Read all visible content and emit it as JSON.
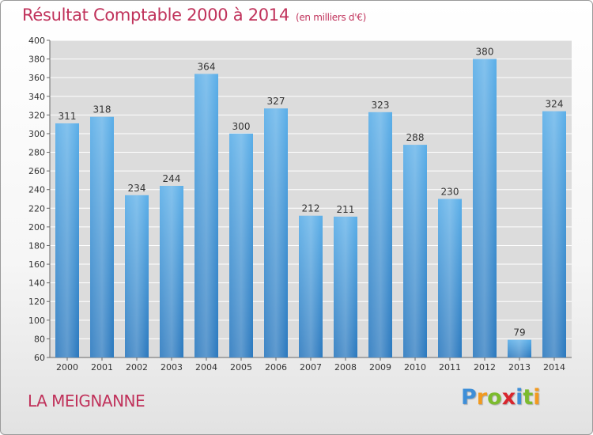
{
  "header": {
    "title": "Résultat Comptable 2000 à 2014",
    "subtitle": "(en milliers d'€)"
  },
  "commune": "LA MEIGNANNE",
  "logo": {
    "text": "Proxiti",
    "letters": [
      "P",
      "r",
      "o",
      "x",
      "i",
      "t",
      "i"
    ],
    "colors": [
      "#3d8ed8",
      "#f29a1f",
      "#7cbb2e",
      "#d8262e",
      "#3d8ed8",
      "#7cbb2e",
      "#f29a1f"
    ]
  },
  "chart_data": {
    "type": "bar",
    "title": "Résultat Comptable 2000 à 2014",
    "xlabel": "",
    "ylabel": "",
    "categories": [
      "2000",
      "2001",
      "2002",
      "2003",
      "2004",
      "2005",
      "2006",
      "2007",
      "2008",
      "2009",
      "2010",
      "2011",
      "2012",
      "2013",
      "2014"
    ],
    "values": [
      311,
      318,
      234,
      244,
      364,
      300,
      327,
      212,
      211,
      323,
      288,
      230,
      380,
      79,
      324
    ],
    "ylim": [
      60,
      400
    ],
    "yticks": [
      60,
      80,
      100,
      120,
      140,
      160,
      180,
      200,
      220,
      240,
      260,
      280,
      300,
      320,
      340,
      360,
      380,
      400
    ],
    "grid": true,
    "bar_color_top": "#5aaee8",
    "bar_color_bottom": "#2a78be"
  }
}
